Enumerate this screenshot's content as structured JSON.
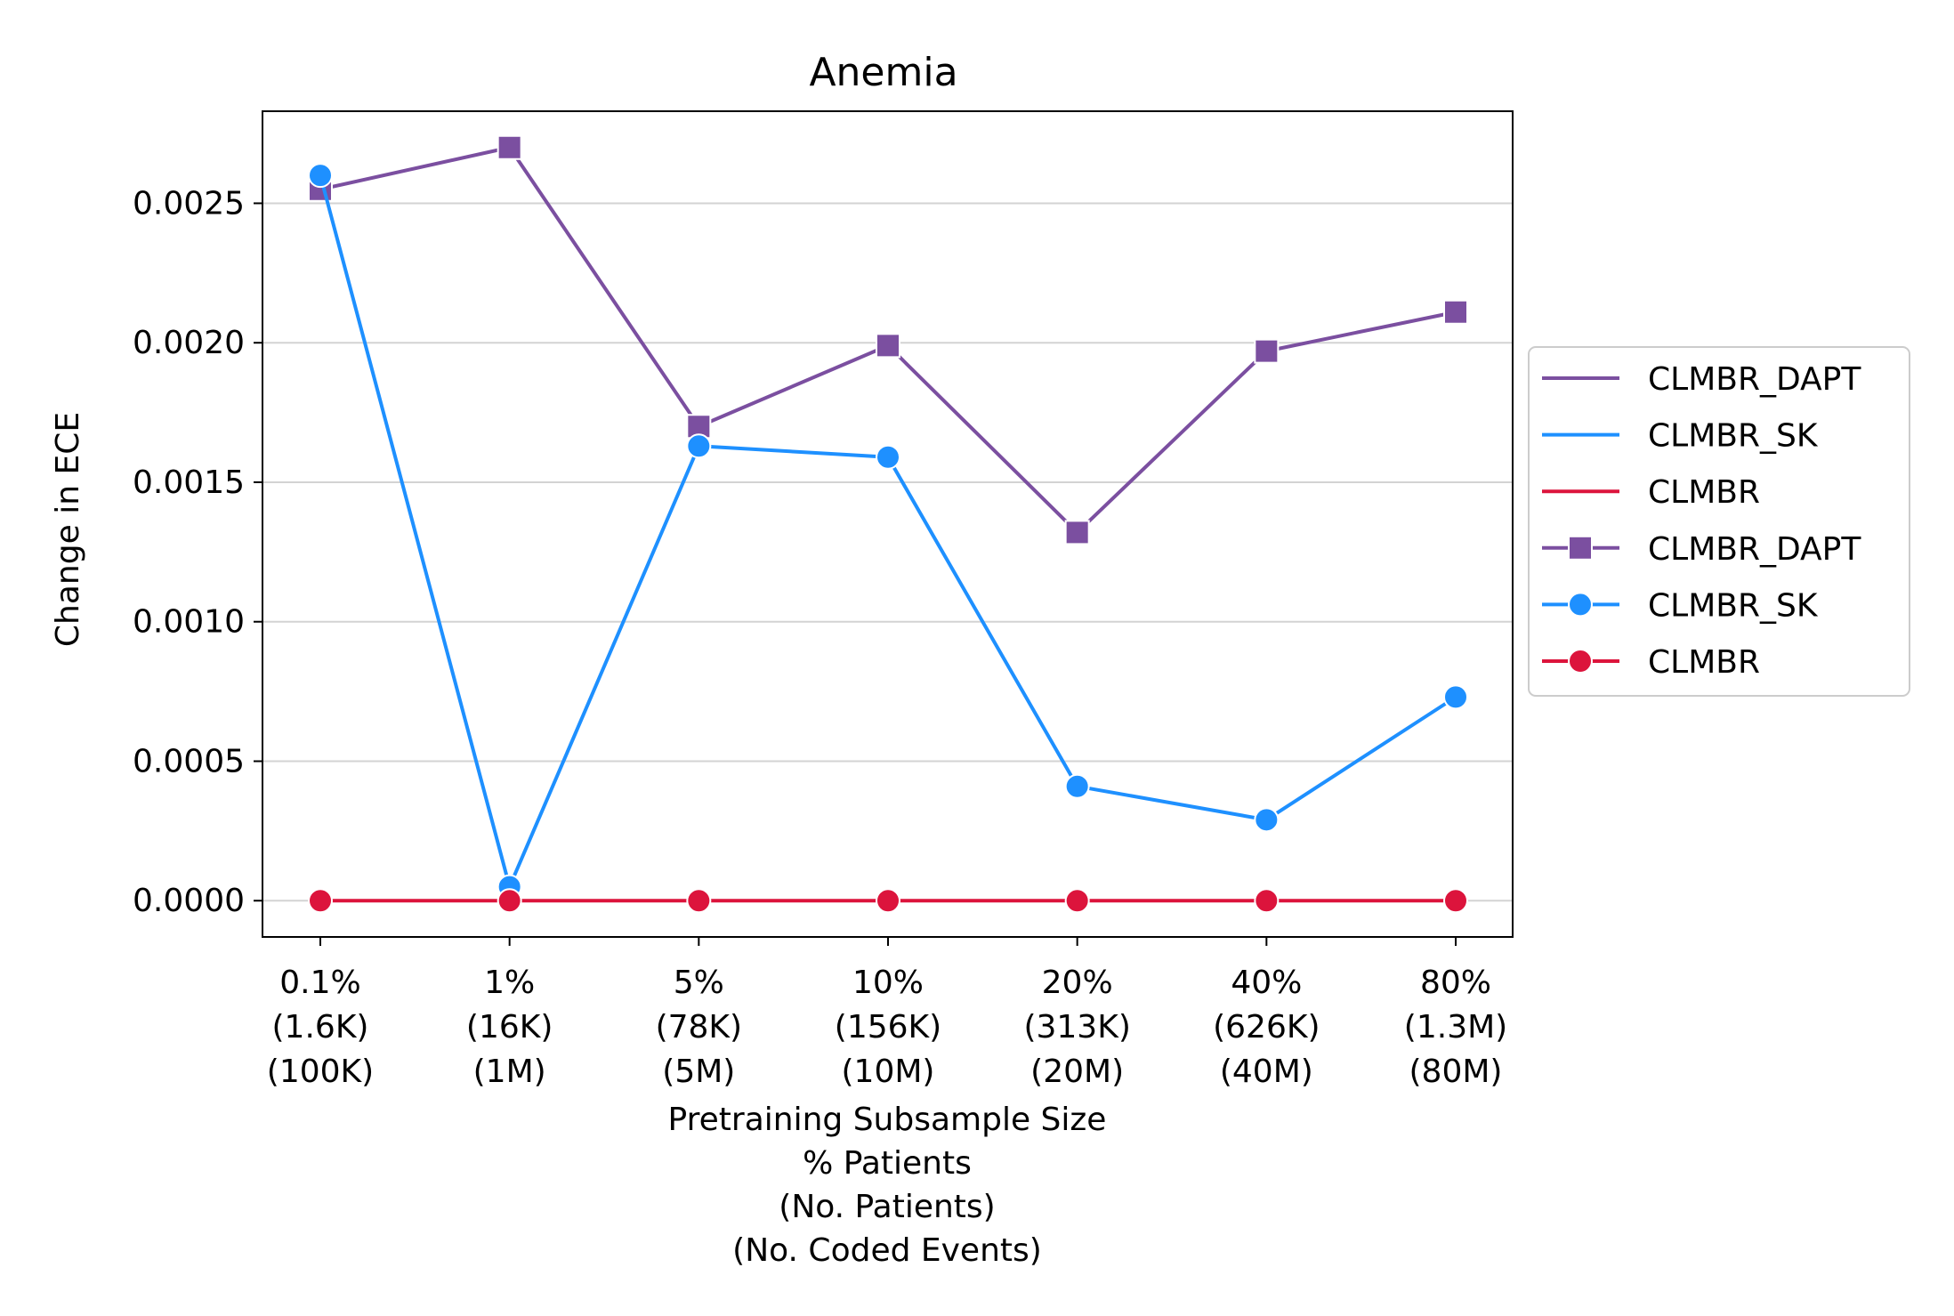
{
  "chart_data": {
    "type": "line",
    "title": "Anemia",
    "ylabel": "Change in ECE",
    "xlabel_lines": [
      "Pretraining Subsample Size",
      "% Patients",
      "(No. Patients)",
      "(No. Coded Events)"
    ],
    "categories": [
      [
        "0.1%",
        "(1.6K)",
        "(100K)"
      ],
      [
        "1%",
        "(16K)",
        "(1M)"
      ],
      [
        "5%",
        "(78K)",
        "(5M)"
      ],
      [
        "10%",
        "(156K)",
        "(10M)"
      ],
      [
        "20%",
        "(313K)",
        "(20M)"
      ],
      [
        "40%",
        "(626K)",
        "(40M)"
      ],
      [
        "80%",
        "(1.3M)",
        "(80M)"
      ]
    ],
    "ylim": [
      -0.00013,
      0.00283
    ],
    "yticks": [
      0.0,
      0.0005,
      0.001,
      0.0015,
      0.002,
      0.0025
    ],
    "ytick_labels": [
      "0.0000",
      "0.0005",
      "0.0010",
      "0.0015",
      "0.0020",
      "0.0025"
    ],
    "grid": "horizontal",
    "legend_position": "right, outside",
    "series": [
      {
        "name": "CLMBR_DAPT",
        "color": "#7B4FA0",
        "marker": "square",
        "values": [
          0.00255,
          0.0027,
          0.0017,
          0.00199,
          0.00132,
          0.00197,
          0.00211
        ]
      },
      {
        "name": "CLMBR_SK",
        "color": "#1E90FF",
        "marker": "circle",
        "values": [
          0.0026,
          5e-05,
          0.00163,
          0.00159,
          0.00041,
          0.00029,
          0.00073
        ]
      },
      {
        "name": "CLMBR",
        "color": "#DC143C",
        "marker": "circle",
        "values": [
          0.0,
          0.0,
          0.0,
          0.0,
          0.0,
          0.0,
          0.0
        ]
      }
    ],
    "legend_entries": [
      {
        "label": "CLMBR_DAPT",
        "series": 0,
        "style": "line"
      },
      {
        "label": "CLMBR_SK",
        "series": 1,
        "style": "line"
      },
      {
        "label": "CLMBR",
        "series": 2,
        "style": "line"
      },
      {
        "label": "CLMBR_DAPT",
        "series": 0,
        "style": "line-marker"
      },
      {
        "label": "CLMBR_SK",
        "series": 1,
        "style": "line-marker"
      },
      {
        "label": "CLMBR",
        "series": 2,
        "style": "line-marker"
      }
    ]
  }
}
